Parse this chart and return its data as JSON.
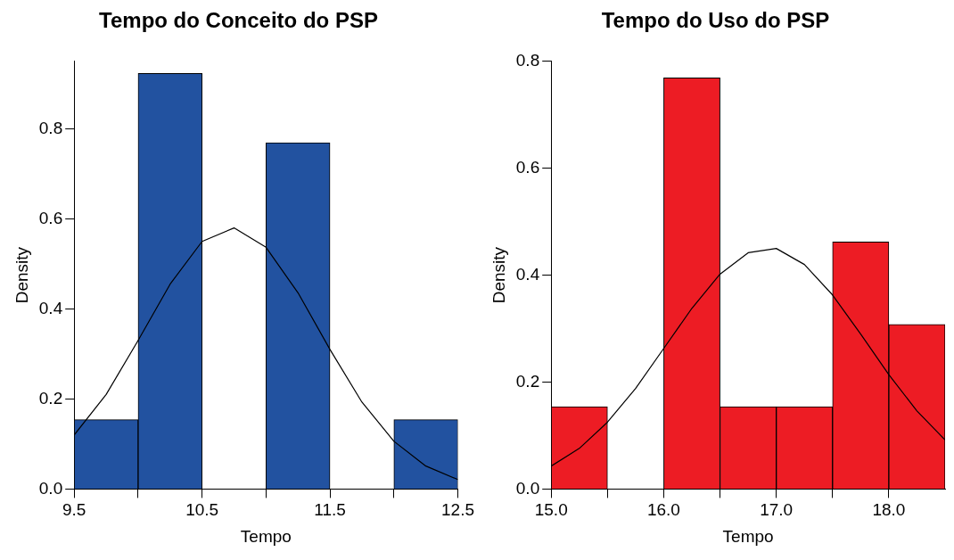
{
  "chart_data": [
    {
      "type": "histogram",
      "title": "Tempo do Conceito do PSP",
      "xlabel": "Tempo",
      "ylabel": "Density",
      "bins": [
        9.5,
        10,
        10.5,
        11,
        11.5,
        12,
        12.5
      ],
      "values": [
        0.154,
        0.923,
        0,
        0.769,
        0,
        0.154
      ],
      "color": "#2252a0",
      "series": [
        {
          "type": "line",
          "color": "#000000",
          "x": [
            9.5,
            9.75,
            10,
            10.25,
            10.5,
            10.75,
            11,
            11.25,
            11.5,
            11.75,
            12,
            12.25,
            12.5
          ],
          "values": [
            0.12,
            0.21,
            0.33,
            0.455,
            0.55,
            0.58,
            0.537,
            0.436,
            0.31,
            0.193,
            0.106,
            0.051,
            0.021
          ]
        }
      ],
      "xlim": [
        9.5,
        12.5
      ],
      "xticks": [
        9.5,
        {
          "value": 10,
          "label": null
        },
        10.5,
        {
          "value": 11,
          "label": null
        },
        11.5,
        {
          "value": 12,
          "label": null
        },
        12.5
      ],
      "ylim": [
        0,
        0.95
      ],
      "yticks": [
        {
          "value": 0,
          "label": "0.0"
        },
        0.2,
        0.4,
        0.6,
        0.8
      ]
    },
    {
      "type": "histogram",
      "title": "Tempo do Uso do PSP",
      "xlabel": "Tempo",
      "ylabel": "Density",
      "bins": [
        15,
        15.5,
        16,
        16.5,
        17,
        17.5,
        18,
        18.5
      ],
      "values": [
        0.154,
        0,
        0.769,
        0.154,
        0.154,
        0.462,
        0.308
      ],
      "color": "#ed1c24",
      "series": [
        {
          "type": "line",
          "color": "#000000",
          "x": [
            15,
            15.25,
            15.5,
            15.75,
            16,
            16.25,
            16.5,
            16.75,
            17,
            17.25,
            17.5,
            17.75,
            18,
            18.25,
            18.5
          ],
          "values": [
            0.043,
            0.076,
            0.125,
            0.188,
            0.263,
            0.338,
            0.402,
            0.442,
            0.45,
            0.42,
            0.363,
            0.29,
            0.214,
            0.146,
            0.092
          ]
        }
      ],
      "xlim": [
        15,
        18.5
      ],
      "xticks": [
        {
          "value": 15,
          "label": "15.0"
        },
        {
          "value": 15.5,
          "label": null
        },
        {
          "value": 16,
          "label": "16.0"
        },
        {
          "value": 16.5,
          "label": null
        },
        {
          "value": 17,
          "label": "17.0"
        },
        {
          "value": 17.5,
          "label": null
        },
        {
          "value": 18,
          "label": "18.0"
        }
      ],
      "ylim": [
        0,
        0.8
      ],
      "yticks": [
        {
          "value": 0,
          "label": "0.0"
        },
        0.2,
        0.4,
        0.6,
        0.8
      ]
    }
  ]
}
